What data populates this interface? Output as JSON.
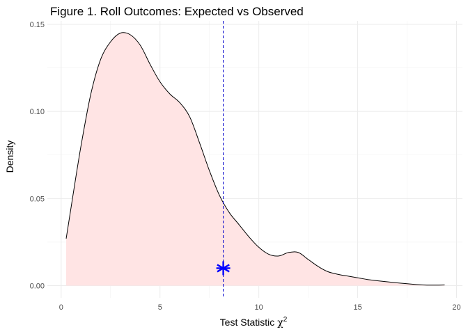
{
  "chart_data": {
    "type": "area",
    "title": "Figure 1. Roll Outcomes: Expected vs Observed",
    "xlabel": "Test Statistic",
    "xlabel_symbol": "χ",
    "xlabel_superscript": "2",
    "ylabel": "Density",
    "xlim": [
      0.2,
      19.4
    ],
    "ylim": [
      0,
      0.15
    ],
    "x_ticks": [
      0,
      5,
      10,
      15,
      20
    ],
    "y_ticks": [
      0.0,
      0.05,
      0.1,
      0.15
    ],
    "x_tick_labels": [
      "0",
      "5",
      "10",
      "15",
      "20"
    ],
    "y_tick_labels": [
      "0.00",
      "0.05",
      "0.10",
      "0.15"
    ],
    "grid": true,
    "series": [
      {
        "fill_color": "#ffe4e4",
        "line_color": "#000000",
        "x": [
          0.25,
          0.5,
          1.0,
          1.5,
          2.0,
          2.5,
          3.0,
          3.5,
          4.0,
          4.5,
          5.0,
          5.5,
          6.0,
          6.5,
          7.0,
          7.5,
          8.0,
          8.5,
          9.0,
          9.5,
          10.0,
          10.5,
          11.0,
          11.5,
          12.0,
          12.5,
          13.0,
          13.5,
          14.0,
          14.5,
          15.0,
          15.5,
          16.0,
          16.5,
          17.0,
          17.5,
          18.0,
          18.5,
          19.0,
          19.4
        ],
        "y": [
          0.027,
          0.045,
          0.08,
          0.11,
          0.13,
          0.14,
          0.145,
          0.144,
          0.138,
          0.127,
          0.117,
          0.11,
          0.105,
          0.097,
          0.082,
          0.066,
          0.052,
          0.042,
          0.035,
          0.028,
          0.022,
          0.018,
          0.017,
          0.019,
          0.019,
          0.015,
          0.011,
          0.008,
          0.0065,
          0.0055,
          0.0045,
          0.0035,
          0.0028,
          0.0022,
          0.0016,
          0.0011,
          0.0006,
          0.0003,
          0.0003,
          0.0004
        ]
      }
    ],
    "reference_line": {
      "x": 8.2,
      "color": "#0000cc",
      "style": "dashed"
    },
    "observed_point": {
      "x": 8.2,
      "y": 0.01,
      "color": "#0000ff",
      "marker": "asterisk"
    }
  }
}
